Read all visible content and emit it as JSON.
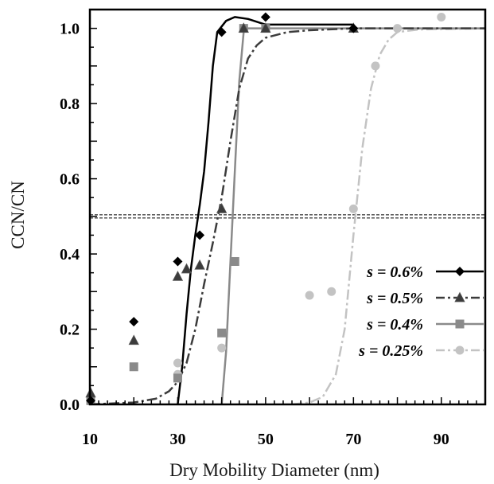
{
  "chart_data": {
    "type": "scatter",
    "xlabel": "Dry Mobility Diameter (nm)",
    "ylabel": "CCN/CN",
    "xlim": [
      10,
      100
    ],
    "ylim": [
      0,
      1.05
    ],
    "xticks": [
      10,
      30,
      50,
      70,
      90
    ],
    "xtick_labels": [
      "10",
      "30",
      "50",
      "70",
      "90"
    ],
    "yticks": [
      0,
      0.2,
      0.4,
      0.6,
      0.8,
      1.0
    ],
    "ytick_labels": [
      "0.0",
      "0.2",
      "0.4",
      "0.6",
      "0.8",
      "1.0"
    ],
    "reference_line": {
      "y": 0.5,
      "style": "double dashed"
    },
    "legend_position": "right",
    "series": [
      {
        "name": "s = 0.6%",
        "s_label": "s",
        "value_label": " = 0.6%",
        "color": "#000000",
        "marker": "diamond",
        "line_style": "solid",
        "points": [
          [
            10,
            0.01
          ],
          [
            20,
            0.22
          ],
          [
            30,
            0.38
          ],
          [
            35,
            0.45
          ],
          [
            40,
            0.99
          ],
          [
            50,
            1.03
          ],
          [
            70,
            1.0
          ]
        ],
        "fit": [
          [
            30,
            0.0
          ],
          [
            31,
            0.1
          ],
          [
            32,
            0.24
          ],
          [
            33,
            0.36
          ],
          [
            34,
            0.45
          ],
          [
            35,
            0.53
          ],
          [
            36,
            0.62
          ],
          [
            37,
            0.75
          ],
          [
            38,
            0.9
          ],
          [
            39,
            0.99
          ],
          [
            41,
            1.02
          ],
          [
            43,
            1.03
          ],
          [
            46,
            1.025
          ],
          [
            50,
            1.01
          ],
          [
            70,
            1.01
          ]
        ]
      },
      {
        "name": "s = 0.5%",
        "s_label": "s",
        "value_label": " = 0.5%",
        "color": "#3c3c3c",
        "marker": "triangle",
        "line_style": "dashdot",
        "points": [
          [
            10,
            0.03
          ],
          [
            20,
            0.17
          ],
          [
            30,
            0.34
          ],
          [
            32,
            0.36
          ],
          [
            35,
            0.37
          ],
          [
            40,
            0.52
          ],
          [
            45,
            1.0
          ],
          [
            50,
            1.0
          ],
          [
            70,
            1.0
          ]
        ],
        "fit": [
          [
            10,
            0.0
          ],
          [
            20,
            0.005
          ],
          [
            25,
            0.015
          ],
          [
            28,
            0.035
          ],
          [
            30,
            0.06
          ],
          [
            32,
            0.11
          ],
          [
            34,
            0.2
          ],
          [
            36,
            0.32
          ],
          [
            38,
            0.43
          ],
          [
            40,
            0.55
          ],
          [
            42,
            0.7
          ],
          [
            44,
            0.84
          ],
          [
            46,
            0.92
          ],
          [
            48,
            0.955
          ],
          [
            50,
            0.975
          ],
          [
            55,
            0.99
          ],
          [
            60,
            0.995
          ],
          [
            70,
            1.0
          ],
          [
            100,
            1.0
          ]
        ]
      },
      {
        "name": "s = 0.4%",
        "s_label": "s",
        "value_label": " = 0.4%",
        "color": "#8a8a8a",
        "marker": "square",
        "line_style": "solid",
        "points": [
          [
            10,
            0.01
          ],
          [
            20,
            0.1
          ],
          [
            30,
            0.07
          ],
          [
            40,
            0.19
          ],
          [
            43,
            0.38
          ],
          [
            45,
            1.0
          ],
          [
            50,
            1.0
          ]
        ],
        "fit": [
          [
            40,
            0.0
          ],
          [
            41,
            0.14
          ],
          [
            42,
            0.38
          ],
          [
            43,
            0.62
          ],
          [
            44,
            0.86
          ],
          [
            45,
            0.99
          ],
          [
            46,
            1.0
          ],
          [
            100,
            1.0
          ]
        ]
      },
      {
        "name": "s = 0.25%",
        "s_label": "s",
        "value_label": " = 0.25%",
        "color": "#c3c3c3",
        "marker": "circle",
        "line_style": "dashdot",
        "points": [
          [
            30,
            0.11
          ],
          [
            30,
            0.08
          ],
          [
            40,
            0.15
          ],
          [
            60,
            0.29
          ],
          [
            65,
            0.3
          ],
          [
            70,
            0.52
          ],
          [
            75,
            0.9
          ],
          [
            80,
            1.0
          ],
          [
            90,
            1.03
          ]
        ],
        "fit": [
          [
            56,
            0.0
          ],
          [
            60,
            0.005
          ],
          [
            63,
            0.02
          ],
          [
            66,
            0.08
          ],
          [
            68,
            0.2
          ],
          [
            70,
            0.45
          ],
          [
            72,
            0.68
          ],
          [
            74,
            0.84
          ],
          [
            76,
            0.93
          ],
          [
            78,
            0.97
          ],
          [
            80,
            0.99
          ],
          [
            85,
            0.997
          ],
          [
            100,
            1.0
          ]
        ]
      }
    ]
  }
}
